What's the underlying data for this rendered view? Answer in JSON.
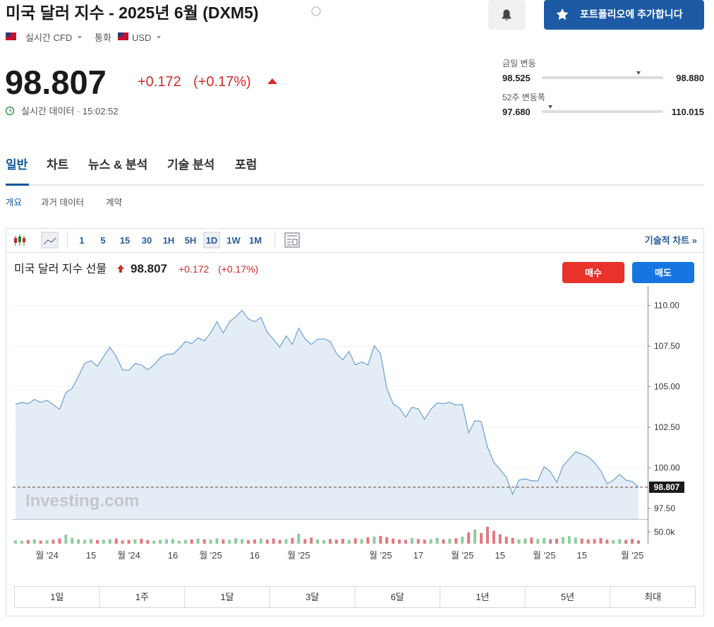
{
  "header": {
    "title": "미국 달러 지수 - 2025년 6월 (DXM5)",
    "market": "실시간 CFD",
    "currency_label": "통화",
    "currency": "USD",
    "add_button": "포트폴리오에 추가합니다"
  },
  "quote": {
    "price": "98.807",
    "change": "+0.172",
    "change_pct": "(+0.17%)",
    "status": "실시간 데이터 · 15:02:52"
  },
  "ranges": {
    "day_label": "금일 변동",
    "day_low": "98.525",
    "day_high": "98.880",
    "week52_label": "52주 변동폭",
    "week52_low": "97.680",
    "week52_high": "110.015"
  },
  "tabs": [
    "일반",
    "차트",
    "뉴스 & 분석",
    "기술 분석",
    "포럼"
  ],
  "subtabs": [
    "개요",
    "과거 데이터",
    "계약"
  ],
  "toolbar": {
    "intervals": [
      "1",
      "5",
      "15",
      "30",
      "1H",
      "5H",
      "1D",
      "1W",
      "1M"
    ],
    "tech_chart": "기술적 차트 »"
  },
  "chart_data": {
    "type": "line",
    "change": "+0.172",
    "change_pct": "(+0.17%)",
    "buy": "매수",
    "sell": "매도",
    "watermark": "Investing.com",
    "categories": [
      null,
      null,
      null,
      null,
      null,
      "월 '24",
      null,
      null,
      null,
      null,
      null,
      null,
      "15",
      null,
      null,
      null,
      null,
      null,
      "월 '24",
      null,
      null,
      null,
      null,
      null,
      null,
      "16",
      null,
      null,
      null,
      null,
      null,
      "월 '25",
      null,
      null,
      null,
      null,
      null,
      null,
      "16",
      null,
      null,
      null,
      null,
      null,
      null,
      "월 '25",
      null,
      null,
      null,
      null,
      null,
      null,
      null,
      null,
      null,
      null,
      null,
      null,
      "월 '25",
      null,
      null,
      null,
      null,
      null,
      "17",
      null,
      null,
      null,
      null,
      null,
      null,
      "월 '25",
      null,
      null,
      null,
      null,
      null,
      "15",
      null,
      null,
      null,
      null,
      null,
      null,
      "월 '25",
      null,
      null,
      null,
      null,
      null,
      "15",
      null,
      null,
      null,
      null,
      null,
      null,
      null,
      "월 '25",
      null
    ],
    "series": [
      {
        "name": "미국 달러 지수 선물",
        "color": "#6a9fd4",
        "values": [
          103.9,
          104.03,
          103.95,
          104.21,
          104.03,
          104.16,
          103.9,
          103.6,
          104.64,
          104.9,
          105.64,
          106.43,
          106.6,
          106.25,
          106.86,
          107.43,
          106.86,
          106.04,
          106.0,
          106.43,
          106.34,
          106.04,
          106.34,
          106.78,
          107.0,
          107.0,
          107.34,
          107.78,
          107.65,
          108.0,
          107.82,
          108.3,
          109.0,
          108.3,
          109.0,
          109.3,
          109.7,
          109.17,
          109.0,
          109.26,
          108.35,
          107.91,
          107.43,
          108.13,
          107.6,
          108.61,
          107.95,
          107.6,
          107.91,
          107.95,
          107.78,
          107.04,
          106.65,
          107.17,
          106.34,
          106.52,
          106.34,
          107.52,
          107.04,
          104.9,
          103.95,
          103.68,
          103.12,
          103.73,
          103.64,
          102.99,
          103.6,
          103.99,
          103.95,
          104.03,
          103.86,
          103.9,
          102.16,
          102.9,
          102.86,
          101.29,
          100.33,
          99.9,
          99.42,
          98.37,
          99.24,
          99.33,
          99.2,
          99.2,
          100.07,
          99.77,
          99.11,
          100.11,
          100.55,
          100.98,
          100.85,
          100.68,
          100.33,
          99.81,
          99.02,
          99.24,
          99.59,
          99.24,
          99.15,
          98.807
        ]
      }
    ],
    "ylim": [
      96.85,
      111.2
    ],
    "yticks": [
      {
        "value": 97.5,
        "label": "97.50"
      },
      {
        "value": 100,
        "label": "100.00"
      },
      {
        "value": 102.5,
        "label": "102.50"
      },
      {
        "value": 105,
        "label": "105.00"
      },
      {
        "value": 107.5,
        "label": "107.50"
      },
      {
        "value": 110,
        "label": "110.00"
      }
    ],
    "grid": true,
    "volume": {
      "up_color": "#8fcca0",
      "down_color": "#e07a80",
      "ylim": [
        0,
        90000
      ],
      "yticks": [
        {
          "value": 50000,
          "label": "50.0k"
        }
      ],
      "values": [
        14000,
        12000,
        16000,
        18000,
        13000,
        15000,
        17000,
        22000,
        38000,
        25000,
        18000,
        16000,
        20000,
        15000,
        17000,
        19000,
        22000,
        14000,
        16000,
        18000,
        21000,
        15000,
        13000,
        17000,
        19000,
        20000,
        12000,
        16000,
        18000,
        22000,
        19000,
        17000,
        23000,
        18000,
        16000,
        24000,
        20000,
        15000,
        18000,
        21000,
        17000,
        22000,
        16000,
        19000,
        24000,
        42000,
        20000,
        26000,
        18000,
        15000,
        20000,
        17000,
        21000,
        16000,
        23000,
        19000,
        27000,
        30000,
        33000,
        28000,
        22000,
        18000,
        16000,
        24000,
        20000,
        17000,
        19000,
        25000,
        18000,
        21000,
        23000,
        30000,
        48000,
        60000,
        45000,
        72000,
        55000,
        40000,
        30000,
        25000,
        18000,
        22000,
        26000,
        20000,
        24000,
        19000,
        21000,
        28000,
        32000,
        26000,
        22000,
        18000,
        20000,
        24000,
        17000,
        15000,
        19000,
        16000,
        20000,
        14000
      ]
    }
  },
  "range_buttons": [
    "1일",
    "1주",
    "1달",
    "3달",
    "6달",
    "1년",
    "5년",
    "최대"
  ]
}
